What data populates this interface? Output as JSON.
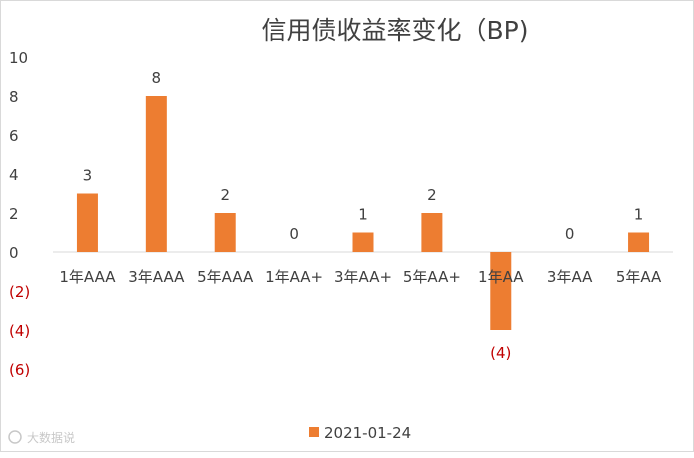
{
  "chart_data": {
    "type": "bar",
    "title": "信用债收益率变化（BP)",
    "categories": [
      "1年AAA",
      "3年AAA",
      "5年AAA",
      "1年AA+",
      "3年AA+",
      "5年AA+",
      "1年AA",
      "3年AA",
      "5年AA"
    ],
    "series": [
      {
        "name": "2021-01-24",
        "values": [
          3,
          8,
          2,
          0,
          1,
          2,
          -4,
          0,
          1
        ]
      }
    ],
    "data_labels": [
      "3",
      "8",
      "2",
      "0",
      "1",
      "2",
      "(4)",
      "0",
      "1"
    ],
    "ylim": [
      -6,
      10
    ],
    "yticks": [
      10,
      8,
      6,
      4,
      2,
      0,
      -2,
      -4,
      -6
    ],
    "ytick_labels": [
      "10",
      "8",
      "6",
      "4",
      "2",
      "0",
      "(2)",
      "(4)",
      "(6)"
    ],
    "grid": false,
    "legend_position": "bottom",
    "xlabel": "",
    "ylabel": ""
  },
  "colors": {
    "bar": "#ED7D31",
    "text": "#404040",
    "negative": "#C00000",
    "axis": "#d9d9d9"
  },
  "watermark": "大数据说"
}
